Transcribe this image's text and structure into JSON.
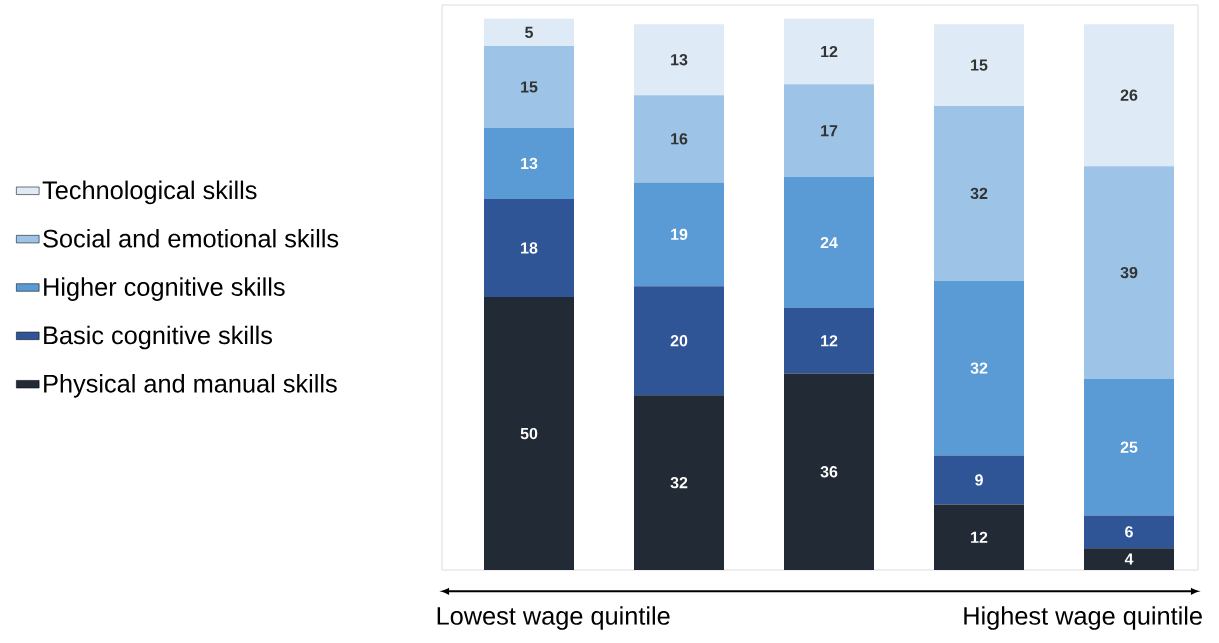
{
  "chart_data": {
    "type": "bar",
    "stacked": true,
    "data_labels": true,
    "legend": "left",
    "categories": [
      null,
      null,
      null,
      null,
      null
    ],
    "series": [
      {
        "name": "Physical and manual skills",
        "color": "#222a35",
        "values": [
          50,
          32,
          36,
          12,
          4
        ]
      },
      {
        "name": "Basic cognitive skills",
        "color": "#2f5597",
        "values": [
          18,
          20,
          12,
          9,
          6
        ]
      },
      {
        "name": "Higher cognitive skills",
        "color": "#5b9bd5",
        "values": [
          13,
          19,
          24,
          32,
          25
        ]
      },
      {
        "name": "Social and emotional skills",
        "color": "#9dc3e6",
        "values": [
          15,
          16,
          17,
          32,
          39
        ]
      },
      {
        "name": "Technological skills",
        "color": "#deebf7",
        "values": [
          5,
          13,
          12,
          15,
          26
        ]
      }
    ],
    "annotations": [
      "Lowest wage quintile",
      "Highest wage quintile"
    ]
  }
}
